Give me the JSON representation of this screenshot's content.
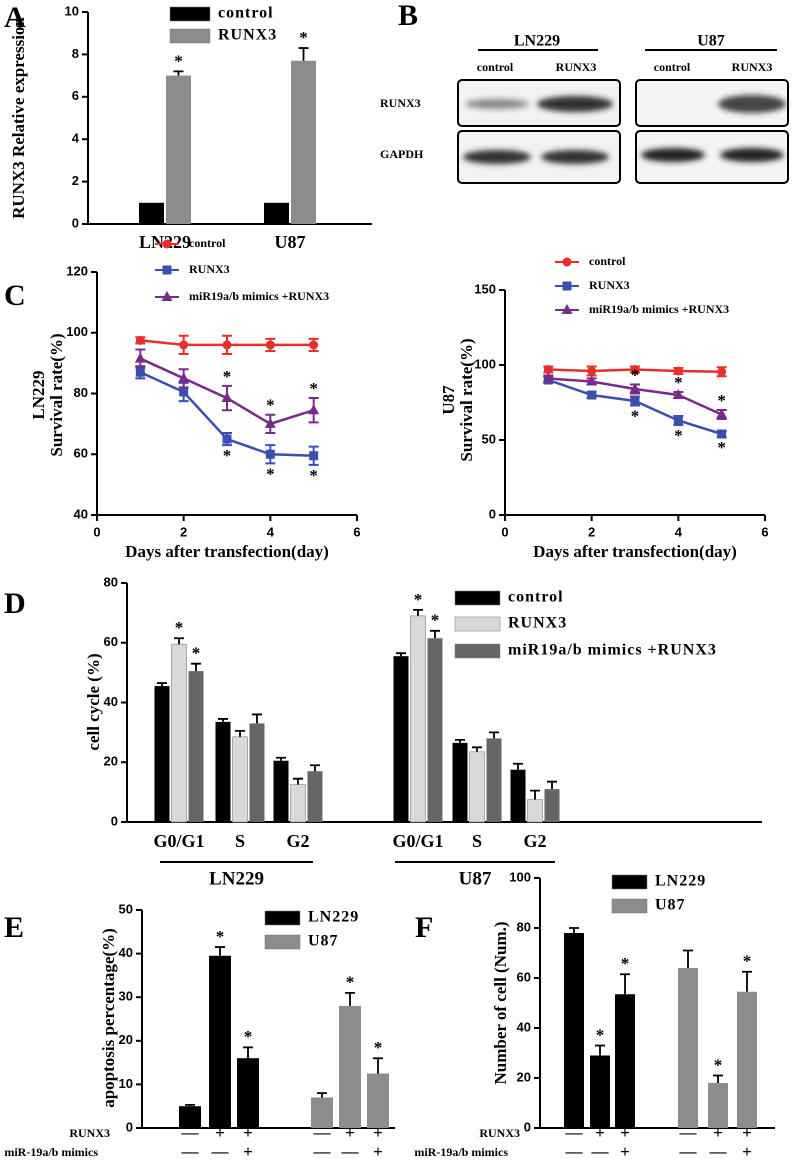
{
  "chart_data": [
    {
      "panel": "A",
      "type": "bar",
      "categories": [
        "LN229",
        "U87"
      ],
      "ylabel": "RUNX3 Relative expression",
      "ylim": [
        0,
        10
      ],
      "yticks": [
        0,
        2,
        4,
        6,
        8,
        10
      ],
      "series": [
        {
          "name": "control",
          "color": "#000000",
          "values": [
            1,
            1
          ]
        },
        {
          "name": "RUNX3",
          "color": "#8c8c8c",
          "values": [
            7.0,
            7.7
          ],
          "errors": [
            0.2,
            0.6
          ],
          "stars": [
            "*",
            "*"
          ]
        }
      ]
    },
    {
      "panel": "C",
      "type": "line",
      "x": [
        1,
        2,
        3,
        4,
        5
      ],
      "ylabel": [
        "LN229",
        "Survival rate(%)"
      ],
      "xlabel": "Days after transfection(day)",
      "xlim": [
        0,
        6
      ],
      "xticks": [
        0,
        2,
        4,
        6
      ],
      "ylim": [
        40,
        120
      ],
      "yticks": [
        40,
        60,
        80,
        100,
        120
      ],
      "series": [
        {
          "name": "control",
          "color": "#e8302a",
          "marker": "circle",
          "values": [
            97.5,
            96,
            96,
            96,
            96
          ],
          "errors": [
            1,
            3,
            3,
            2,
            2
          ]
        },
        {
          "name": "RUNX3",
          "color": "#3a4fb0",
          "marker": "square",
          "values": [
            87,
            80.5,
            65,
            60,
            59.5
          ],
          "errors": [
            2,
            3,
            2,
            3,
            3
          ],
          "stars": [
            null,
            null,
            "*",
            "*",
            "*"
          ],
          "star_side": "below"
        },
        {
          "name": "miR19a/b mimics +RUNX3",
          "color": "#7a2a8a",
          "marker": "triangle",
          "values": [
            91.5,
            85,
            78.5,
            70,
            74.5
          ],
          "errors": [
            3,
            3,
            4,
            3,
            4
          ],
          "stars": [
            null,
            null,
            "*",
            "*",
            "*"
          ],
          "star_side": "above"
        }
      ]
    },
    {
      "type": "line",
      "x": [
        1,
        2,
        3,
        4,
        5
      ],
      "ylabel": [
        "U87",
        "Survival rate(%)"
      ],
      "xlabel": "Days after transfection(day)",
      "xlim": [
        0,
        6
      ],
      "xticks": [
        0,
        2,
        4,
        6
      ],
      "ylim": [
        0,
        150
      ],
      "yticks": [
        0,
        50,
        100,
        150
      ],
      "series": [
        {
          "name": "control",
          "color": "#e8302a",
          "marker": "circle",
          "values": [
            97,
            96,
            97,
            96,
            95.5
          ],
          "errors": [
            2,
            3,
            2,
            2,
            3
          ]
        },
        {
          "name": "RUNX3",
          "color": "#3a4fb0",
          "marker": "square",
          "values": [
            90,
            80,
            76,
            63,
            54
          ],
          "errors": [
            2,
            2,
            3,
            3,
            2
          ],
          "stars": [
            null,
            null,
            "*",
            "*",
            "*"
          ],
          "star_side": "below"
        },
        {
          "name": "miR19a/b mimics +RUNX3",
          "color": "#7a2a8a",
          "marker": "triangle",
          "values": [
            91,
            89,
            84,
            80,
            67
          ],
          "errors": [
            2,
            2,
            3,
            2,
            3
          ],
          "stars": [
            null,
            null,
            "*",
            "*",
            "*"
          ],
          "star_side": "above"
        }
      ]
    },
    {
      "panel": "D",
      "type": "bar",
      "categories": [
        "G0/G1",
        "S",
        "G2",
        "G0/G1",
        "S",
        "G2"
      ],
      "group_labels": [
        "LN229",
        "U87"
      ],
      "ylabel": "cell cycle (%)",
      "ylim": [
        0,
        80
      ],
      "yticks": [
        0,
        20,
        40,
        60,
        80
      ],
      "series": [
        {
          "name": "control",
          "color": "#000000",
          "values": [
            45.5,
            33.5,
            20.5,
            55.5,
            26.5,
            17.5
          ],
          "errors": [
            1,
            1,
            1,
            1,
            1,
            2
          ]
        },
        {
          "name": "RUNX3",
          "color": "#d9d9d9",
          "values": [
            59.5,
            28.5,
            12.5,
            69,
            23.5,
            7.5
          ],
          "errors": [
            2,
            2,
            2,
            2,
            1.5,
            3
          ],
          "stars": [
            "*",
            null,
            null,
            "*",
            null,
            null
          ]
        },
        {
          "name": "miR19a/b mimics +RUNX3",
          "color": "#666666",
          "values": [
            50.5,
            33,
            17,
            61.5,
            28,
            11
          ],
          "errors": [
            2.5,
            3,
            2,
            2.5,
            2,
            2.5
          ],
          "stars": [
            "*",
            null,
            null,
            "*",
            null,
            null
          ]
        }
      ]
    },
    {
      "panel": "E",
      "type": "bar",
      "categories": [
        null,
        null,
        null,
        null,
        null,
        null
      ],
      "ylabel": "apoptosis percentage(%)",
      "ylim": [
        0,
        50
      ],
      "yticks": [
        0,
        10,
        20,
        30,
        40,
        50
      ],
      "series": [
        {
          "name": "LN229",
          "color": "#000000",
          "values": [
            5,
            39.5,
            16,
            null,
            null,
            null
          ],
          "errors": [
            0.3,
            2,
            2.5,
            null,
            null,
            null
          ],
          "stars": [
            null,
            "*",
            "*",
            null,
            null,
            null
          ]
        },
        {
          "name": "U87",
          "color": "#8c8c8c",
          "values": [
            null,
            null,
            null,
            7,
            28,
            12.5
          ],
          "errors": [
            null,
            null,
            null,
            1,
            3,
            3.5
          ],
          "stars": [
            null,
            null,
            null,
            null,
            "*",
            "*"
          ]
        }
      ],
      "conditions": [
        {
          "name": "RUNX3",
          "signs": [
            "—",
            "+",
            "+",
            "—",
            "+",
            "+"
          ]
        },
        {
          "name": "miR-19a/b mimics",
          "signs": [
            "—",
            "—",
            "+",
            "—",
            "—",
            "+"
          ]
        }
      ]
    },
    {
      "panel": "F",
      "type": "bar",
      "categories": [
        null,
        null,
        null,
        null,
        null,
        null
      ],
      "ylabel": "Number of cell (Num.)",
      "ylim": [
        0,
        100
      ],
      "yticks": [
        0,
        20,
        40,
        60,
        80,
        100
      ],
      "series": [
        {
          "name": "LN229",
          "color": "#000000",
          "values": [
            78,
            29,
            53.5,
            null,
            null,
            null
          ],
          "errors": [
            2,
            4,
            8,
            null,
            null,
            null
          ],
          "stars": [
            null,
            "*",
            "*",
            null,
            null,
            null
          ]
        },
        {
          "name": "U87",
          "color": "#8c8c8c",
          "values": [
            null,
            null,
            null,
            64,
            18,
            54.5
          ],
          "errors": [
            null,
            null,
            null,
            7,
            3,
            8
          ],
          "stars": [
            null,
            null,
            null,
            null,
            "*",
            "*"
          ]
        }
      ],
      "conditions": [
        {
          "name": "RUNX3",
          "signs": [
            "—",
            "+",
            "+",
            "—",
            "+",
            "+"
          ]
        },
        {
          "name": "miR-19a/b mimics",
          "signs": [
            "—",
            "—",
            "+",
            "—",
            "—",
            "+"
          ]
        }
      ]
    }
  ],
  "blot": {
    "panel": "B",
    "cell_lines": [
      {
        "name": "LN229",
        "lanes": [
          "control",
          "RUNX3"
        ]
      },
      {
        "name": "U87",
        "lanes": [
          "control",
          "RUNX3"
        ]
      }
    ],
    "rows": [
      "RUNX3",
      "GAPDH"
    ]
  }
}
